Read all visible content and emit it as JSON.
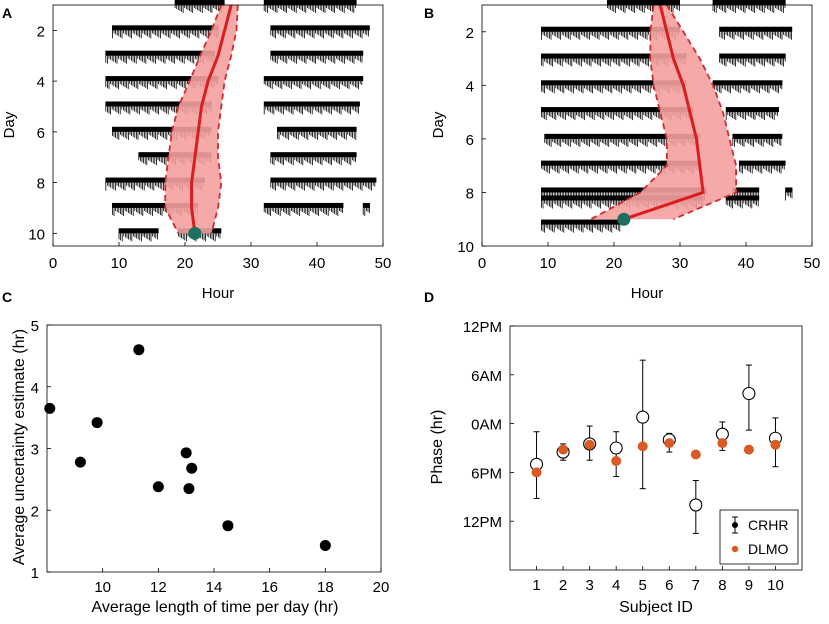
{
  "chart_data": [
    {
      "panel": "A",
      "type": "actogram",
      "xlabel": "Hour",
      "ylabel": "Day",
      "xlim": [
        0,
        50
      ],
      "ylim": [
        1,
        10.5
      ],
      "xticks": [
        0,
        10,
        20,
        30,
        40,
        50
      ],
      "yticks": [
        2,
        4,
        6,
        8,
        10
      ],
      "activity_rows": [
        {
          "day": 1,
          "segments": [
            [
              18.5,
              26
            ],
            [
              32,
              46
            ]
          ]
        },
        {
          "day": 2,
          "segments": [
            [
              9,
              25
            ],
            [
              33,
              48
            ]
          ]
        },
        {
          "day": 3,
          "segments": [
            [
              8,
              24.5
            ],
            [
              33,
              47
            ]
          ]
        },
        {
          "day": 4,
          "segments": [
            [
              8,
              25
            ],
            [
              32,
              47
            ]
          ]
        },
        {
          "day": 5,
          "segments": [
            [
              8,
              24
            ],
            [
              32,
              46.5
            ]
          ]
        },
        {
          "day": 6,
          "segments": [
            [
              9,
              24
            ],
            [
              34,
              46
            ]
          ]
        },
        {
          "day": 7,
          "segments": [
            [
              13,
              24
            ],
            [
              33,
              46
            ]
          ]
        },
        {
          "day": 8,
          "segments": [
            [
              8,
              23
            ],
            [
              33,
              49
            ]
          ]
        },
        {
          "day": 9,
          "segments": [
            [
              9,
              22
            ],
            [
              32,
              44
            ],
            [
              47,
              48
            ]
          ]
        },
        {
          "day": 10,
          "segments": [
            [
              10,
              16
            ],
            [
              19,
              25.5
            ]
          ]
        }
      ],
      "estimate": [
        {
          "day": 1,
          "mean": 27.0,
          "lower": 25.5,
          "upper": 28.0
        },
        {
          "day": 2,
          "mean": 26.0,
          "lower": 24.0,
          "upper": 27.8
        },
        {
          "day": 3,
          "mean": 25.0,
          "lower": 22.3,
          "upper": 27.0
        },
        {
          "day": 4,
          "mean": 23.5,
          "lower": 20.7,
          "upper": 26.0
        },
        {
          "day": 5,
          "mean": 22.5,
          "lower": 19.0,
          "upper": 25.5
        },
        {
          "day": 6,
          "mean": 22.0,
          "lower": 18.0,
          "upper": 25.0
        },
        {
          "day": 7,
          "mean": 21.5,
          "lower": 17.5,
          "upper": 25.0
        },
        {
          "day": 8,
          "mean": 21.0,
          "lower": 17.0,
          "upper": 25.5
        },
        {
          "day": 9,
          "mean": 21.0,
          "lower": 17.0,
          "upper": 25.0
        },
        {
          "day": 10,
          "mean": 21.5,
          "lower": 19.0,
          "upper": 24.0
        }
      ],
      "marker": {
        "x": 21.5,
        "day": 10.0
      }
    },
    {
      "panel": "B",
      "type": "actogram",
      "xlabel": "Hour",
      "ylabel": "Day",
      "xlim": [
        0,
        50
      ],
      "ylim": [
        1,
        10
      ],
      "xticks": [
        0,
        10,
        20,
        30,
        40,
        50
      ],
      "yticks": [
        2,
        4,
        6,
        8,
        10
      ],
      "activity_rows": [
        {
          "day": 1,
          "segments": [
            [
              19,
              30
            ],
            [
              35,
              46
            ]
          ]
        },
        {
          "day": 2,
          "segments": [
            [
              9,
              30
            ],
            [
              36,
              47
            ]
          ]
        },
        {
          "day": 3,
          "segments": [
            [
              9,
              31
            ],
            [
              36,
              46
            ]
          ]
        },
        {
          "day": 4,
          "segments": [
            [
              9,
              31
            ],
            [
              35,
              45.5
            ]
          ]
        },
        {
          "day": 5,
          "segments": [
            [
              9,
              32
            ],
            [
              37,
              45
            ]
          ]
        },
        {
          "day": 6,
          "segments": [
            [
              9.5,
              33
            ],
            [
              38,
              45.5
            ]
          ]
        },
        {
          "day": 7,
          "segments": [
            [
              9,
              33
            ],
            [
              39,
              46
            ]
          ]
        },
        {
          "day": 8,
          "segments": [
            [
              9,
              34
            ],
            [
              38,
              42
            ],
            [
              46,
              47
            ]
          ]
        },
        {
          "day": 8.3,
          "segments": [
            [
              9,
              33.5
            ],
            [
              37,
              42
            ]
          ]
        },
        {
          "day": 9.2,
          "segments": [
            [
              9,
              21
            ]
          ]
        }
      ],
      "estimate": [
        {
          "day": 1,
          "mean": 27.0,
          "lower": 26.0,
          "upper": 28.0
        },
        {
          "day": 2,
          "mean": 28.0,
          "lower": 25.5,
          "upper": 30.5
        },
        {
          "day": 3,
          "mean": 29.0,
          "lower": 25.5,
          "upper": 33.0
        },
        {
          "day": 4,
          "mean": 30.5,
          "lower": 26.0,
          "upper": 35.0
        },
        {
          "day": 5,
          "mean": 31.5,
          "lower": 27.0,
          "upper": 36.5
        },
        {
          "day": 6,
          "mean": 32.5,
          "lower": 28.0,
          "upper": 37.5
        },
        {
          "day": 7,
          "mean": 33.0,
          "lower": 28.0,
          "upper": 38.5
        },
        {
          "day": 8,
          "mean": 33.5,
          "lower": 24.0,
          "upper": 38.5
        },
        {
          "day": 9,
          "mean": 21.5,
          "lower": 16.5,
          "upper": 29.0
        }
      ],
      "marker": {
        "x": 21.5,
        "day": 9.0
      }
    },
    {
      "panel": "C",
      "type": "scatter",
      "xlabel": "Average length of time per day (hr)",
      "ylabel": "Average uncertainty estimate (hr)",
      "xlim": [
        8,
        20
      ],
      "ylim": [
        1,
        5
      ],
      "xticks": [
        10,
        12,
        14,
        16,
        18,
        20
      ],
      "yticks": [
        1,
        2,
        3,
        4,
        5
      ],
      "x": [
        8.1,
        9.2,
        9.8,
        11.3,
        12.0,
        13.0,
        13.1,
        13.2,
        14.5,
        18.0
      ],
      "y": [
        3.65,
        2.78,
        3.42,
        4.6,
        2.38,
        2.93,
        2.35,
        2.68,
        1.75,
        1.43
      ]
    },
    {
      "panel": "D",
      "type": "errorbar",
      "xlabel": "Subject ID",
      "ylabel": "Phase (hr)",
      "categories": [
        "1",
        "2",
        "3",
        "4",
        "5",
        "6",
        "7",
        "8",
        "9",
        "10"
      ],
      "ylim_hr_from_top": [
        0,
        30
      ],
      "ytick_labels": [
        "12PM",
        "6AM",
        "0AM",
        "6PM",
        "12PM"
      ],
      "ytick_values": [
        0,
        6,
        12,
        18,
        24
      ],
      "legend": {
        "placement": "bottom-right",
        "entries": [
          "CRHR",
          "DLMO"
        ]
      },
      "series": [
        {
          "name": "CRHR",
          "values": [
            17.0,
            15.5,
            14.5,
            15.0,
            11.2,
            14.0,
            22.0,
            13.3,
            8.3,
            13.8
          ],
          "lower_err": [
            4.0,
            1.0,
            2.2,
            2.0,
            7.0,
            0.8,
            3.0,
            1.5,
            3.5,
            2.5
          ],
          "upper_err": [
            4.2,
            1.0,
            2.0,
            3.5,
            8.8,
            1.5,
            3.5,
            2.0,
            4.5,
            3.5
          ]
        },
        {
          "name": "DLMO",
          "values": [
            18.0,
            15.2,
            14.6,
            16.6,
            14.8,
            14.4,
            15.8,
            14.4,
            15.2,
            14.6
          ]
        }
      ]
    }
  ],
  "panel_labels": [
    "A",
    "B",
    "C",
    "D"
  ],
  "colors": {
    "band": "#f4a0a0",
    "band_edge": "#d42a2a",
    "mean_line": "#d81e1e",
    "marker": "#1f6f5f",
    "dlmo": "#d95a22",
    "ink": "#000000"
  }
}
